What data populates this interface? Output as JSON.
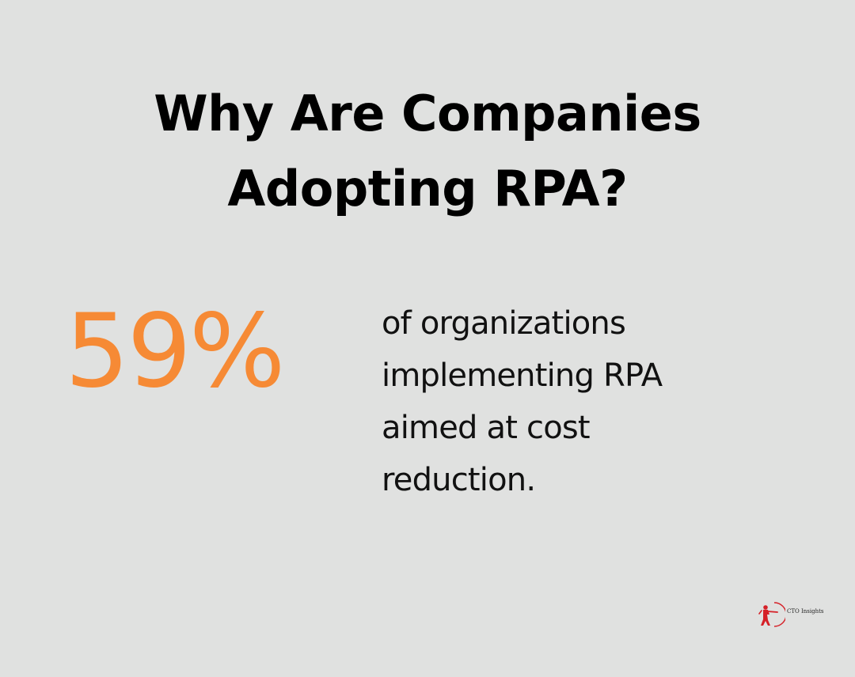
{
  "title": {
    "line1": "Why Are Companies",
    "line2": "Adopting RPA?"
  },
  "stat": {
    "value": "59%",
    "color": "#f68a35"
  },
  "description": {
    "line1": "of organizations",
    "line2": "implementing RPA",
    "line3": "aimed at cost",
    "line4": "reduction."
  },
  "brand": {
    "name": "CTO Insights",
    "icon": "archer-icon",
    "color": "#d52027"
  },
  "colors": {
    "background": "#e0e1e0",
    "text": "#000000"
  }
}
